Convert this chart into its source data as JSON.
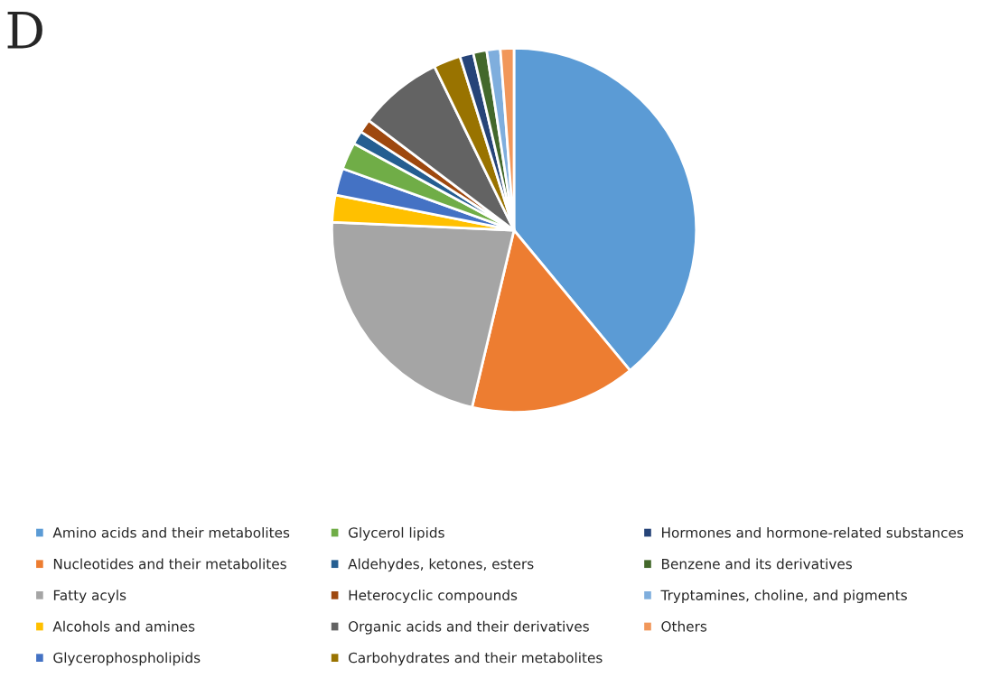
{
  "chart_data": {
    "type": "pie",
    "categories": [
      "Amino acids and their metabolites",
      "Nucleotides and their metabolites",
      "Fatty acyls",
      "Alcohols and amines",
      "Glycerophospholipids",
      "Glycerol lipids",
      "Aldehydes, ketones, esters",
      "Heterocyclic compounds",
      "Organic acids and their derivatives",
      "Carbohydrates and their metabolites",
      "Hormones and hormone-related substances",
      "Benzene and its derivatives",
      "Tryptamines, choline, and pigments",
      "Others"
    ],
    "values": [
      39,
      14.7,
      22,
      2.4,
      2.4,
      2.4,
      1.2,
      1.2,
      7.5,
      2.4,
      1.2,
      1.2,
      1.2,
      1.2
    ],
    "colors": [
      "#5b9bd5",
      "#ed7d31",
      "#a5a5a5",
      "#ffc000",
      "#4472c4",
      "#70ad47",
      "#255e91",
      "#9e480e",
      "#636363",
      "#997300",
      "#264478",
      "#43682b",
      "#7faedd",
      "#f1975a"
    ],
    "legend": "bottom",
    "annotations": [
      "D"
    ]
  }
}
